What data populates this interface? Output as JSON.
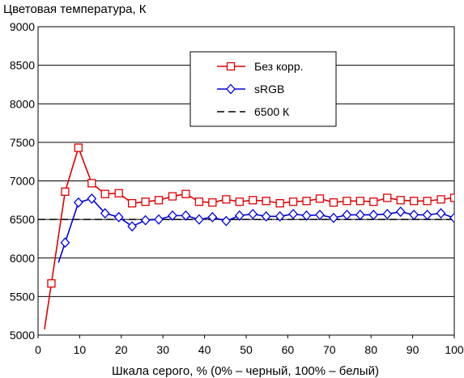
{
  "chart_data": {
    "type": "line",
    "ylabel": "Цветовая температура, К",
    "xlabel": "Шкала серого, % (0% – черный, 100% – белый)",
    "xlim": [
      0,
      100
    ],
    "ylim": [
      5000,
      9000
    ],
    "xticks": [
      0,
      10,
      20,
      30,
      40,
      50,
      60,
      70,
      80,
      90,
      100
    ],
    "yticks": [
      5000,
      5500,
      6000,
      6500,
      7000,
      7500,
      8000,
      8500,
      9000
    ],
    "grid": "horizontal",
    "legend_position": "top-center",
    "series": [
      {
        "name": "Без корр.",
        "color": "#e00000",
        "marker": "square",
        "line_style": "solid",
        "x": [
          3.2,
          6.5,
          9.7,
          12.9,
          16.1,
          19.4,
          22.6,
          25.8,
          29.0,
          32.3,
          35.5,
          38.7,
          41.9,
          45.2,
          48.4,
          51.6,
          54.8,
          58.1,
          61.3,
          64.5,
          67.7,
          71.0,
          74.2,
          77.4,
          80.6,
          83.9,
          87.1,
          90.3,
          93.5,
          96.8,
          100.0
        ],
        "values": [
          5670,
          6860,
          7430,
          6970,
          6830,
          6840,
          6710,
          6730,
          6750,
          6800,
          6830,
          6730,
          6720,
          6760,
          6730,
          6750,
          6740,
          6710,
          6730,
          6740,
          6770,
          6720,
          6740,
          6740,
          6730,
          6780,
          6750,
          6740,
          6740,
          6760,
          6780
        ]
      },
      {
        "name": "sRGB",
        "color": "#0000e0",
        "marker": "diamond",
        "line_style": "solid",
        "x": [
          6.5,
          9.7,
          12.9,
          16.1,
          19.4,
          22.6,
          25.8,
          29.0,
          32.3,
          35.5,
          38.7,
          41.9,
          45.2,
          48.4,
          51.6,
          54.8,
          58.1,
          61.3,
          64.5,
          67.7,
          71.0,
          74.2,
          77.4,
          80.6,
          83.9,
          87.1,
          90.3,
          93.5,
          96.8,
          100.0
        ],
        "values": [
          6200,
          6720,
          6770,
          6580,
          6530,
          6410,
          6490,
          6500,
          6550,
          6550,
          6500,
          6530,
          6480,
          6550,
          6570,
          6540,
          6540,
          6570,
          6550,
          6560,
          6520,
          6560,
          6560,
          6560,
          6570,
          6600,
          6560,
          6560,
          6580,
          6520
        ]
      },
      {
        "name": "6500 К",
        "color": "#000000",
        "marker": "none",
        "line_style": "dashed",
        "x": [
          0,
          100
        ],
        "values": [
          6500,
          6500
        ]
      }
    ]
  }
}
